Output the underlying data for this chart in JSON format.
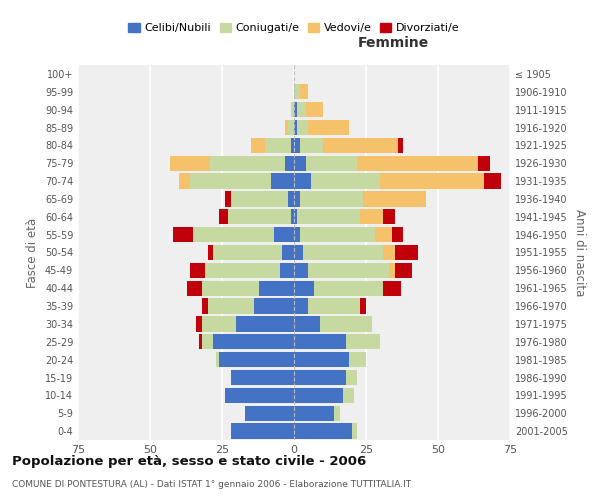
{
  "age_groups": [
    "0-4",
    "5-9",
    "10-14",
    "15-19",
    "20-24",
    "25-29",
    "30-34",
    "35-39",
    "40-44",
    "45-49",
    "50-54",
    "55-59",
    "60-64",
    "65-69",
    "70-74",
    "75-79",
    "80-84",
    "85-89",
    "90-94",
    "95-99",
    "100+"
  ],
  "birth_years": [
    "2001-2005",
    "1996-2000",
    "1991-1995",
    "1986-1990",
    "1981-1985",
    "1976-1980",
    "1971-1975",
    "1966-1970",
    "1961-1965",
    "1956-1960",
    "1951-1955",
    "1946-1950",
    "1941-1945",
    "1936-1940",
    "1931-1935",
    "1926-1930",
    "1921-1925",
    "1916-1920",
    "1911-1915",
    "1906-1910",
    "≤ 1905"
  ],
  "males": {
    "celibi": [
      22,
      17,
      24,
      22,
      26,
      28,
      20,
      14,
      12,
      5,
      4,
      7,
      1,
      2,
      8,
      3,
      1,
      0,
      0,
      0,
      0
    ],
    "coniugati": [
      0,
      0,
      0,
      0,
      1,
      4,
      12,
      16,
      20,
      26,
      24,
      28,
      22,
      20,
      28,
      26,
      9,
      2,
      1,
      0,
      0
    ],
    "vedovi": [
      0,
      0,
      0,
      0,
      0,
      0,
      0,
      0,
      0,
      0,
      0,
      0,
      0,
      0,
      4,
      14,
      5,
      1,
      0,
      0,
      0
    ],
    "divorziati": [
      0,
      0,
      0,
      0,
      0,
      1,
      2,
      2,
      5,
      5,
      2,
      7,
      3,
      2,
      0,
      0,
      0,
      0,
      0,
      0,
      0
    ]
  },
  "females": {
    "nubili": [
      20,
      14,
      17,
      18,
      19,
      18,
      9,
      5,
      7,
      5,
      3,
      2,
      1,
      2,
      6,
      4,
      2,
      1,
      1,
      0,
      0
    ],
    "coniugate": [
      2,
      2,
      4,
      4,
      6,
      12,
      18,
      18,
      24,
      28,
      28,
      26,
      22,
      22,
      24,
      18,
      8,
      4,
      3,
      2,
      0
    ],
    "vedove": [
      0,
      0,
      0,
      0,
      0,
      0,
      0,
      0,
      0,
      2,
      4,
      6,
      8,
      22,
      36,
      42,
      26,
      14,
      6,
      3,
      0
    ],
    "divorziate": [
      0,
      0,
      0,
      0,
      0,
      0,
      0,
      2,
      6,
      6,
      8,
      4,
      4,
      0,
      6,
      4,
      2,
      0,
      0,
      0,
      0
    ]
  },
  "color_celibi": "#4472c4",
  "color_coniugati": "#c5d9a0",
  "color_vedovi": "#f5c26b",
  "color_divorziati": "#c0000b",
  "title": "Popolazione per età, sesso e stato civile - 2006",
  "subtitle": "COMUNE DI PONTESTURA (AL) - Dati ISTAT 1° gennaio 2006 - Elaborazione TUTTITALIA.IT",
  "xlabel_right": "Femmine",
  "ylabel_left": "Fasce di età",
  "ylabel_right": "Anni di nascita",
  "xlim": 75,
  "legend_labels": [
    "Celibi/Nubili",
    "Coniugati/e",
    "Vedovi/e",
    "Divorziati/e"
  ],
  "background_color": "#efefef"
}
